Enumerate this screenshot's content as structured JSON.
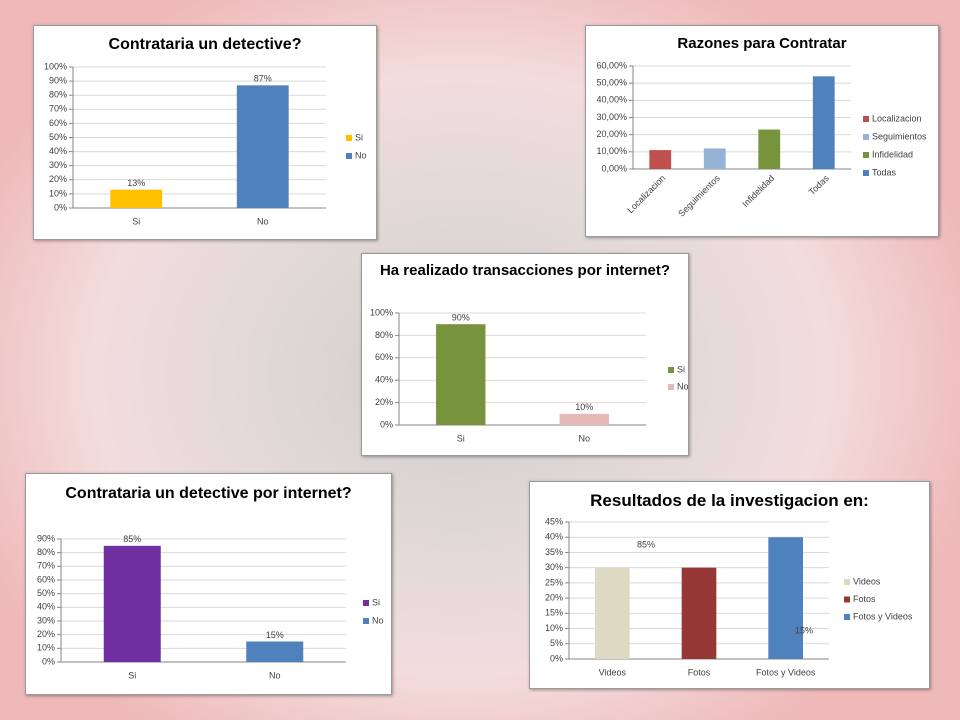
{
  "chart_data": [
    {
      "type": "bar",
      "title": "Contrataria un detective?",
      "categories": [
        "Si",
        "No"
      ],
      "values": [
        13,
        87
      ],
      "value_labels": [
        "13%",
        "87%"
      ],
      "colors": [
        "#ffc000",
        "#4f81bd"
      ],
      "ylim": [
        0,
        100
      ],
      "yticks": [
        {
          "value": 0,
          "label": "0%"
        },
        {
          "value": 10,
          "label": "10%"
        },
        {
          "value": 20,
          "label": "20%"
        },
        {
          "value": 30,
          "label": "30%"
        },
        {
          "value": 40,
          "label": "40%"
        },
        {
          "value": 50,
          "label": "50%"
        },
        {
          "value": 60,
          "label": "60%"
        },
        {
          "value": 70,
          "label": "70%"
        },
        {
          "value": 80,
          "label": "80%"
        },
        {
          "value": 90,
          "label": "90%"
        },
        {
          "value": 100,
          "label": "100%"
        }
      ],
      "grid": true,
      "legend": "right"
    },
    {
      "type": "bar",
      "title": "Razones para Contratar",
      "categories": [
        "Localizacion",
        "Seguimientos",
        "Infidelidad",
        "Todas"
      ],
      "values": [
        11,
        12,
        23,
        54
      ],
      "colors": [
        "#c0504d",
        "#95b3d7",
        "#77933c",
        "#4f81bd"
      ],
      "ylim": [
        0,
        60
      ],
      "yticks": [
        {
          "value": 0,
          "label": "0,00%"
        },
        {
          "value": 10,
          "label": "10,00%"
        },
        {
          "value": 20,
          "label": "20,00%"
        },
        {
          "value": 30,
          "label": "30,00%"
        },
        {
          "value": 40,
          "label": "40,00%"
        },
        {
          "value": 50,
          "label": "50,00%"
        },
        {
          "value": 60,
          "label": "60,00%"
        }
      ],
      "grid": true,
      "legend": "right"
    },
    {
      "type": "bar",
      "title": "Ha realizado transacciones por internet?",
      "categories": [
        "Si",
        "No"
      ],
      "values": [
        90,
        10
      ],
      "value_labels": [
        "90%",
        "10%"
      ],
      "colors": [
        "#77933c",
        "#e6b9b8"
      ],
      "ylim": [
        0,
        100
      ],
      "yticks": [
        {
          "value": 0,
          "label": "0%"
        },
        {
          "value": 20,
          "label": "20%"
        },
        {
          "value": 40,
          "label": "40%"
        },
        {
          "value": 60,
          "label": "60%"
        },
        {
          "value": 80,
          "label": "80%"
        },
        {
          "value": 100,
          "label": "100%"
        }
      ],
      "grid": true,
      "legend": "right"
    },
    {
      "type": "bar",
      "title": "Contrataria un detective por internet?",
      "categories": [
        "Si",
        "No"
      ],
      "values": [
        85,
        15
      ],
      "value_labels": [
        "85%",
        "15%"
      ],
      "colors": [
        "#7030a0",
        "#4f81bd"
      ],
      "ylim": [
        0,
        90
      ],
      "yticks": [
        {
          "value": 0,
          "label": "0%"
        },
        {
          "value": 10,
          "label": "10%"
        },
        {
          "value": 20,
          "label": "20%"
        },
        {
          "value": 30,
          "label": "30%"
        },
        {
          "value": 40,
          "label": "40%"
        },
        {
          "value": 50,
          "label": "50%"
        },
        {
          "value": 60,
          "label": "60%"
        },
        {
          "value": 70,
          "label": "70%"
        },
        {
          "value": 80,
          "label": "80%"
        },
        {
          "value": 90,
          "label": "90%"
        }
      ],
      "grid": true,
      "legend": "right"
    },
    {
      "type": "bar",
      "title": "Resultados de la investigacion en:",
      "categories": [
        "Videos",
        "Fotos",
        "Fotos y Videos"
      ],
      "values": [
        30,
        30,
        40
      ],
      "colors": [
        "#ddd9c3",
        "#953735",
        "#4f81bd"
      ],
      "ylim": [
        0,
        45
      ],
      "yticks": [
        {
          "value": 0,
          "label": "0%"
        },
        {
          "value": 5,
          "label": "5%"
        },
        {
          "value": 10,
          "label": "10%"
        },
        {
          "value": 15,
          "label": "15%"
        },
        {
          "value": 20,
          "label": "20%"
        },
        {
          "value": 25,
          "label": "25%"
        },
        {
          "value": 30,
          "label": "30%"
        },
        {
          "value": 35,
          "label": "35%"
        },
        {
          "value": 40,
          "label": "40%"
        },
        {
          "value": 45,
          "label": "45%"
        }
      ],
      "grid": true,
      "legend": "right",
      "annotations": [
        "85%",
        "15%"
      ]
    }
  ]
}
